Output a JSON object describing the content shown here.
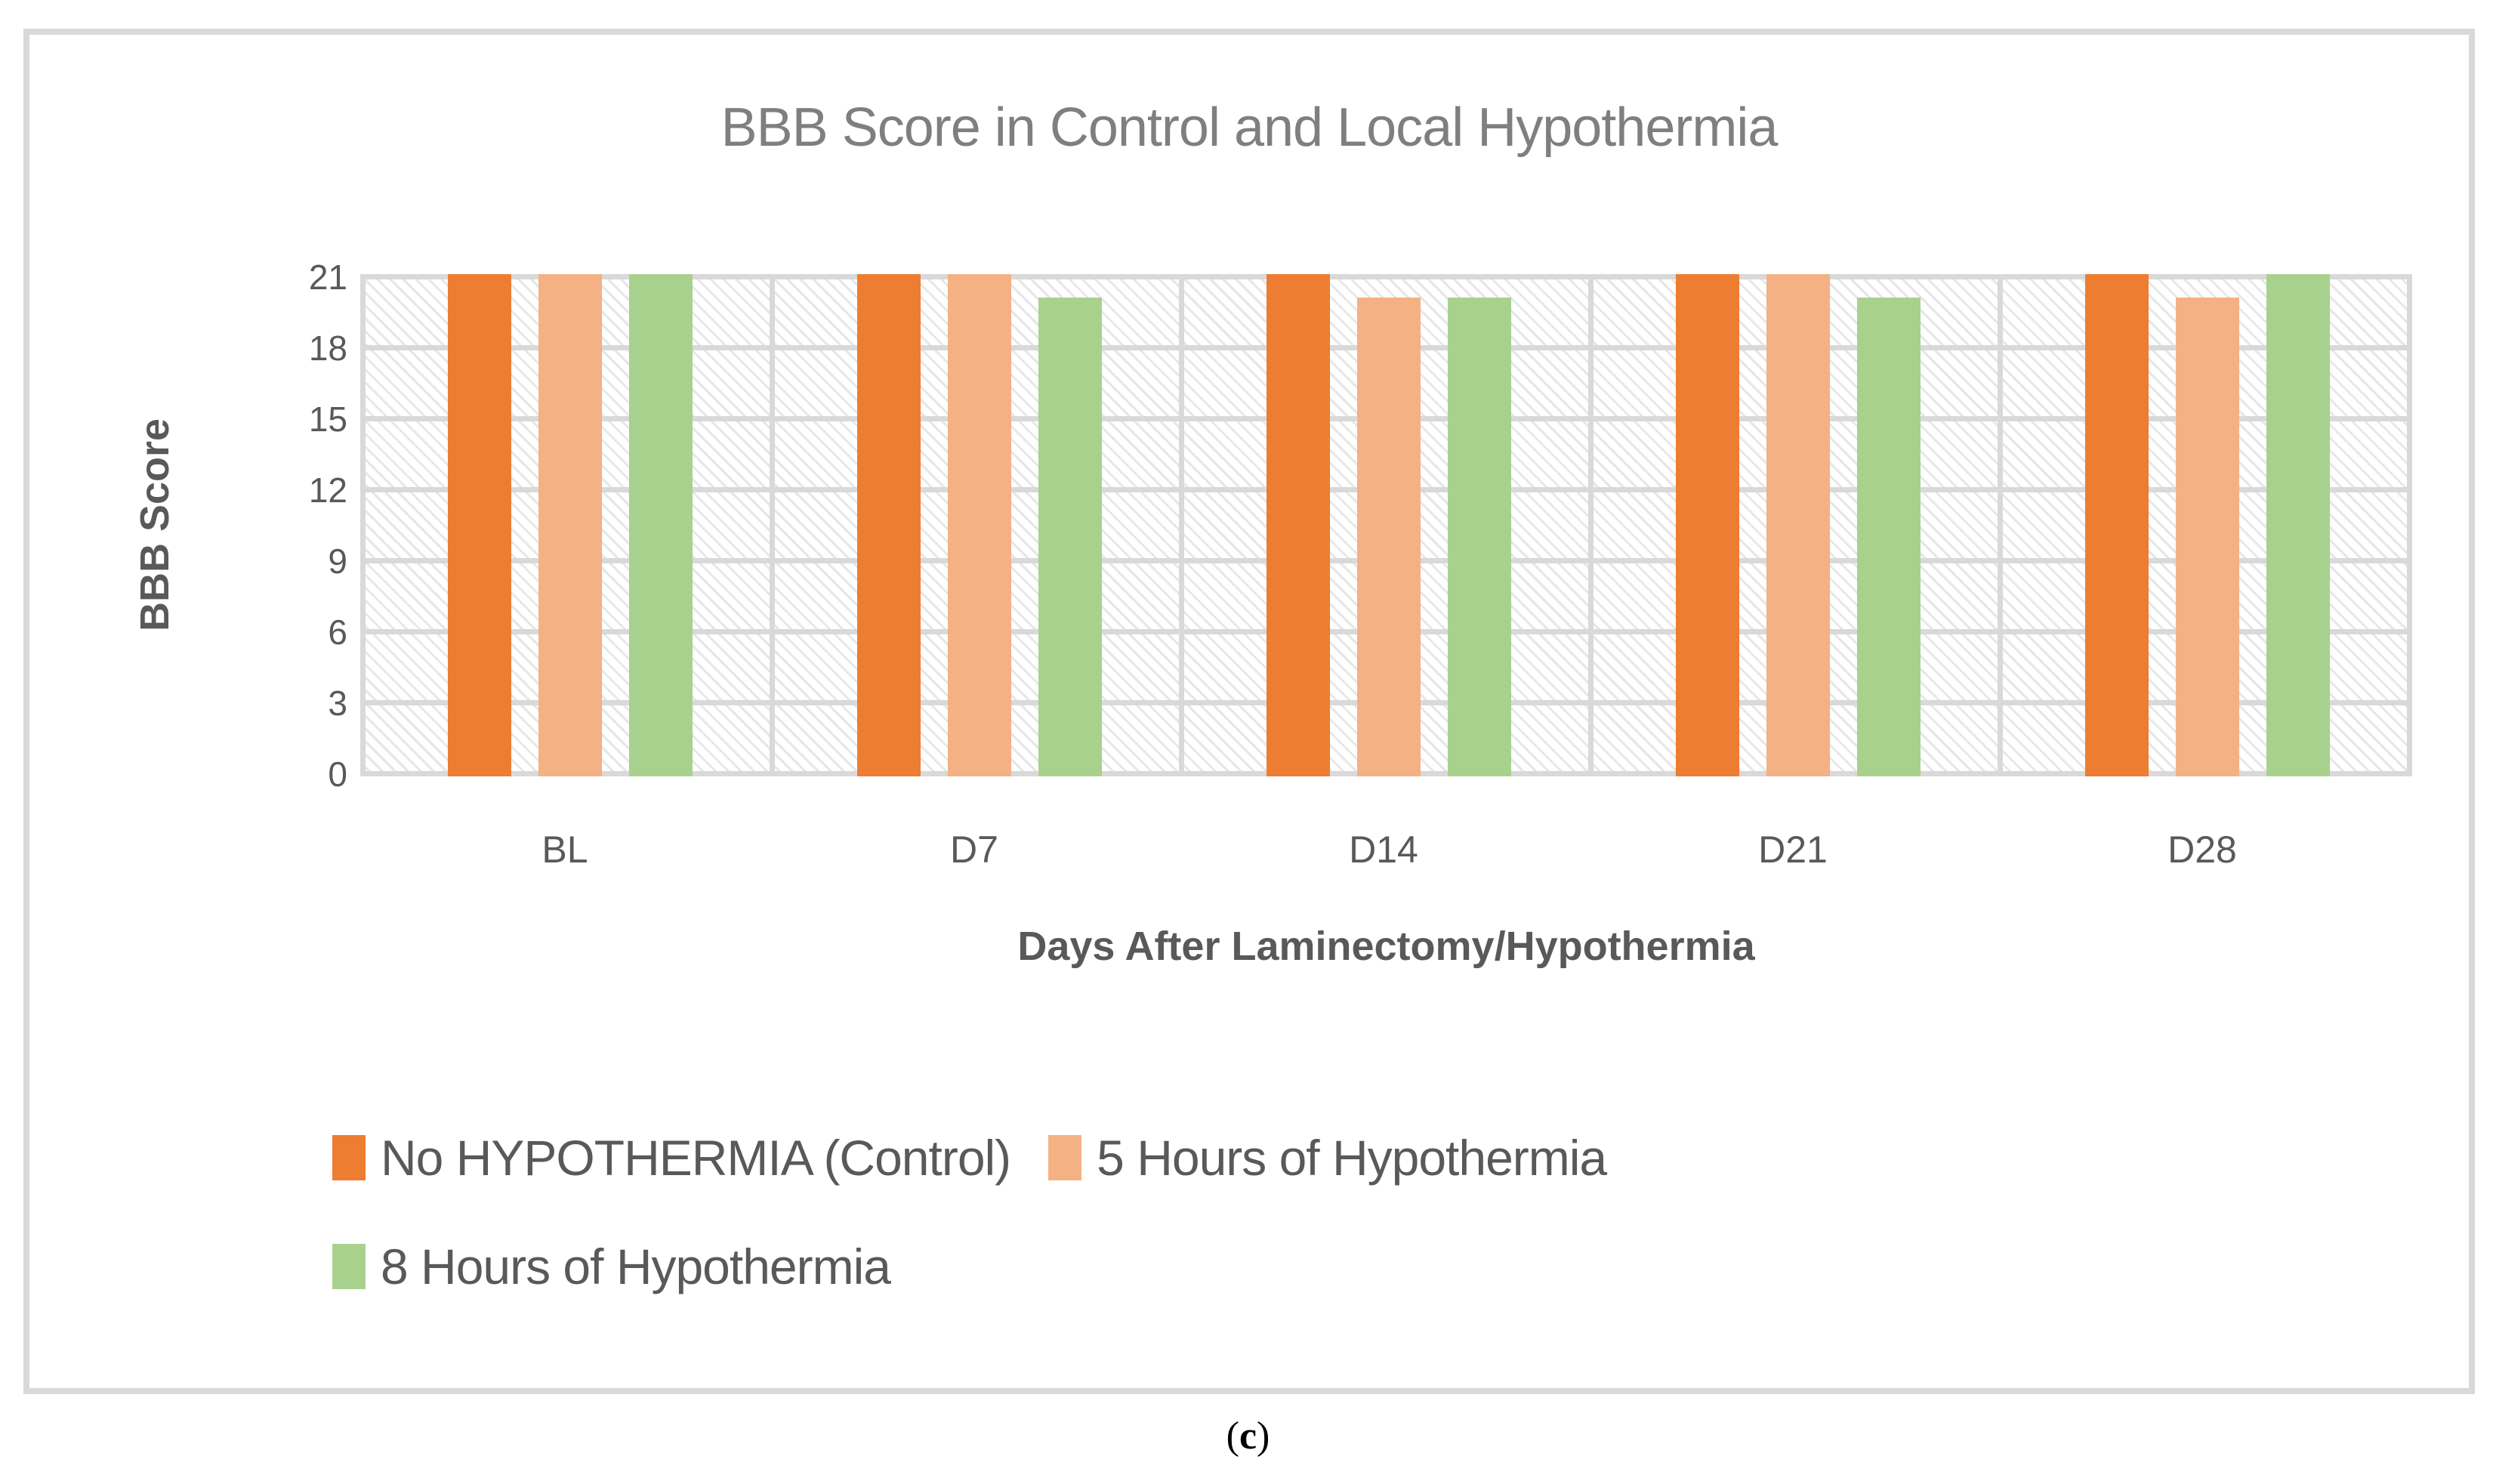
{
  "figure": {
    "caption": {
      "open": "(",
      "letter": "c",
      "close": ")"
    }
  },
  "chart_data": {
    "type": "bar",
    "title": "BBB Score in Control and Local Hypothermia",
    "xlabel": "Days After Laminectomy/Hypothermia",
    "ylabel": "BBB Score",
    "categories": [
      "BL",
      "D7",
      "D14",
      "D21",
      "D28"
    ],
    "series": [
      {
        "name": "No HYPOTHERMIA (Control)",
        "color": "#ED7D31",
        "values": [
          21,
          21,
          21,
          21,
          21
        ]
      },
      {
        "name": "5 Hours of Hypothermia",
        "color": "#F4B183",
        "values": [
          21,
          21,
          20,
          21,
          20
        ]
      },
      {
        "name": "8 Hours of Hypothermia",
        "color": "#A9D18E",
        "values": [
          21,
          20,
          20,
          20,
          21
        ]
      }
    ],
    "yticks_top_to_bottom": [
      21,
      18,
      15,
      12,
      9,
      6,
      3,
      0
    ],
    "ylim": [
      0,
      21
    ],
    "grid": true,
    "plot_area_pattern": "light-downward-diagonal-hatch",
    "gridline_color": "#D9D9D9",
    "title_color": "#7F7F7F",
    "axis_text_color": "#595959",
    "legend_position": "bottom-left"
  }
}
